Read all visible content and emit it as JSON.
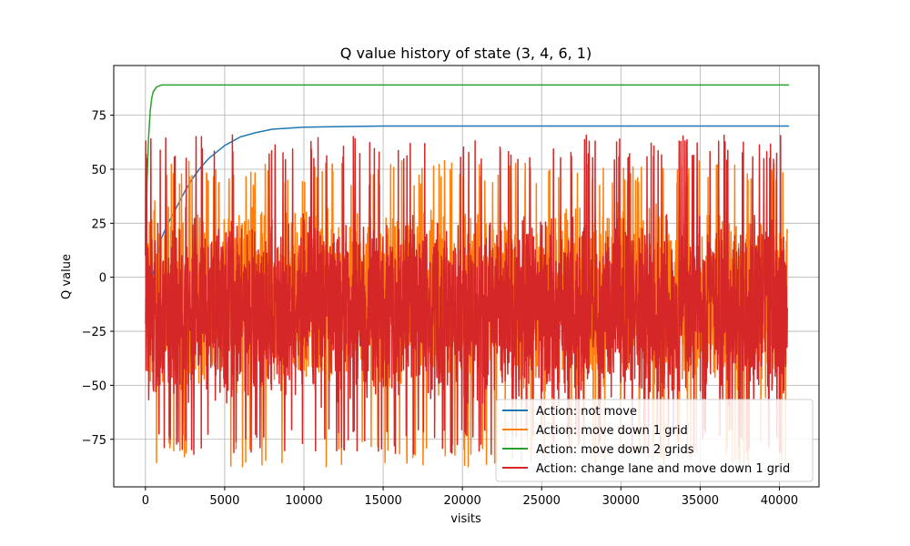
{
  "chart_data": {
    "type": "line",
    "title": "Q value history of state (3, 4, 6, 1)",
    "xlabel": "visits",
    "ylabel": "Q value",
    "xlim": [
      -2000,
      42500
    ],
    "ylim": [
      -97,
      98
    ],
    "xticks": [
      0,
      5000,
      10000,
      15000,
      20000,
      25000,
      30000,
      35000,
      40000
    ],
    "yticks": [
      -75,
      -50,
      -25,
      0,
      25,
      50,
      75
    ],
    "grid": true,
    "legend_position": "lower right",
    "series": [
      {
        "name": "Action: not move",
        "color": "#1f77b4",
        "pattern": "smooth",
        "points": [
          [
            0,
            -1
          ],
          [
            200,
            -1
          ],
          [
            400,
            0
          ],
          [
            600,
            5
          ],
          [
            800,
            12
          ],
          [
            1000,
            18
          ],
          [
            1500,
            26
          ],
          [
            2000,
            33
          ],
          [
            2500,
            40
          ],
          [
            3000,
            46
          ],
          [
            3500,
            51
          ],
          [
            4000,
            55
          ],
          [
            5000,
            61
          ],
          [
            6000,
            65
          ],
          [
            7000,
            67
          ],
          [
            8000,
            68.5
          ],
          [
            10000,
            69.5
          ],
          [
            15000,
            70
          ],
          [
            20000,
            70
          ],
          [
            30000,
            70
          ],
          [
            40600,
            70
          ]
        ]
      },
      {
        "name": "Action: move down 1 grid",
        "color": "#ff7f0e",
        "pattern": "noisy",
        "x_start": 0,
        "x_end": 40500,
        "center": -10,
        "min": -88,
        "max": 54
      },
      {
        "name": "Action: move down 2 grids",
        "color": "#2ca02c",
        "pattern": "smooth",
        "points": [
          [
            0,
            10
          ],
          [
            100,
            45
          ],
          [
            200,
            65
          ],
          [
            300,
            77
          ],
          [
            400,
            83
          ],
          [
            500,
            86
          ],
          [
            700,
            88
          ],
          [
            1000,
            89
          ],
          [
            2000,
            89
          ],
          [
            10000,
            89
          ],
          [
            20000,
            89
          ],
          [
            30000,
            89
          ],
          [
            40600,
            89
          ]
        ]
      },
      {
        "name": "Action: change lane and move down 1 grid",
        "color": "#d62728",
        "pattern": "noisy",
        "x_start": 0,
        "x_end": 40500,
        "center": -15,
        "min": -82,
        "max": 66
      }
    ]
  }
}
